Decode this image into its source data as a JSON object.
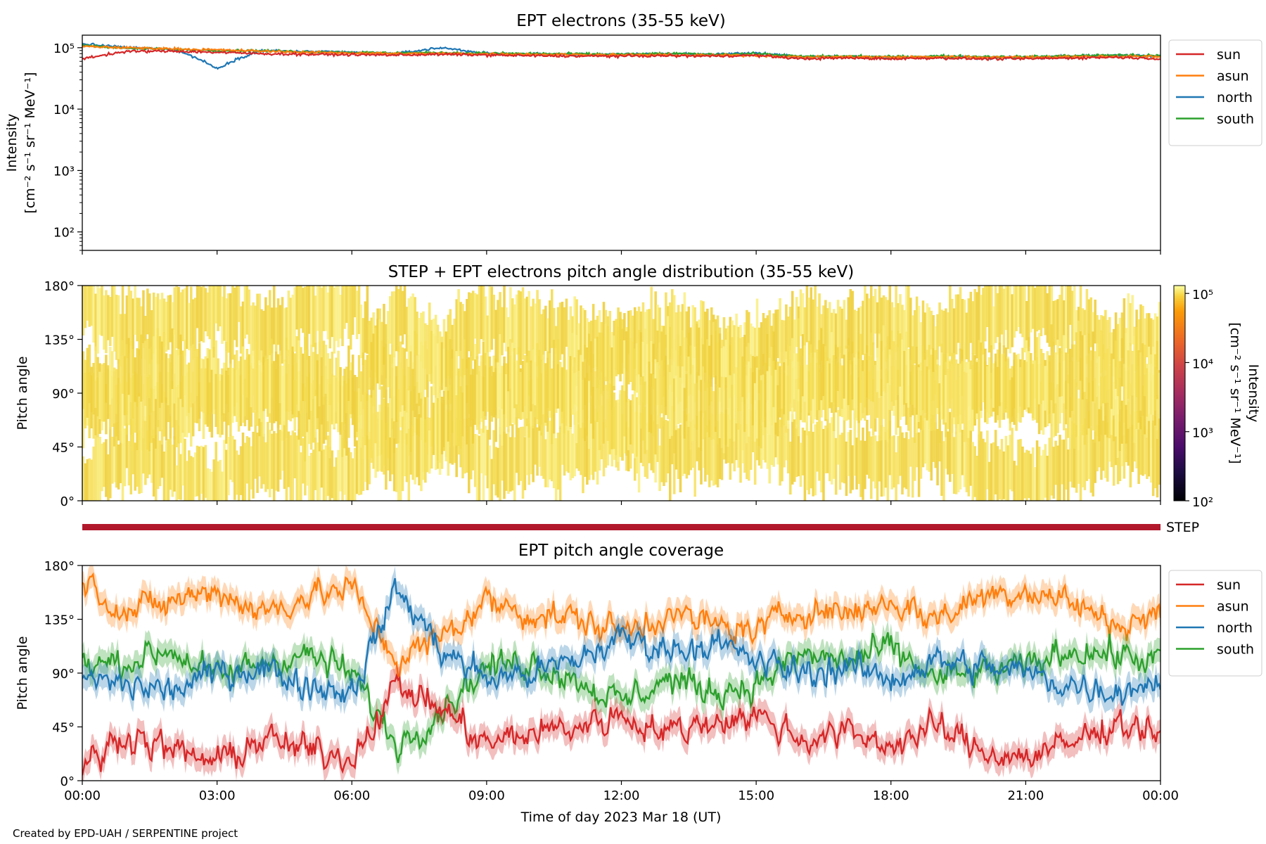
{
  "colors": {
    "sun": "#d62728",
    "asun": "#ff7f0e",
    "north": "#1f77b4",
    "south": "#2ca02c",
    "step_bar": "#b2182b"
  },
  "xaxis": {
    "tick_labels": [
      "00:00",
      "03:00",
      "06:00",
      "09:00",
      "12:00",
      "15:00",
      "18:00",
      "21:00",
      "00:00"
    ],
    "label": "Time of day 2023 Mar 18 (UT)",
    "range_hours": [
      0,
      24
    ]
  },
  "credit": "Created by EPD-UAH / SERPENTINE project",
  "step_label": "STEP",
  "chart_data": [
    {
      "type": "line",
      "title": "EPT electrons (35-55 keV)",
      "ylabel_line1": "Intensity",
      "ylabel_line2": "[cm⁻² s⁻¹ sr⁻¹ MeV⁻¹]",
      "yscale": "log",
      "ylim": [
        50,
        160000
      ],
      "yticks": [
        "10²",
        "10³",
        "10⁴",
        "10⁵"
      ],
      "ytick_values": [
        100,
        1000,
        10000,
        100000
      ],
      "legend": [
        "sun",
        "asun",
        "north",
        "south"
      ],
      "legend_position": "outside-right-top",
      "x_hours": [
        0,
        1,
        2,
        3,
        4,
        5,
        6,
        7,
        8,
        9,
        10,
        11,
        12,
        13,
        14,
        15,
        16,
        17,
        18,
        19,
        20,
        21,
        22,
        23,
        24
      ],
      "series": [
        {
          "name": "sun",
          "values": [
            66000,
            87000,
            88000,
            84000,
            80000,
            78000,
            77000,
            76000,
            78000,
            76000,
            74000,
            73000,
            73000,
            74000,
            73000,
            75000,
            66000,
            68000,
            66000,
            68000,
            66000,
            66000,
            68000,
            70000,
            66000
          ]
        },
        {
          "name": "asun",
          "values": [
            105000,
            100000,
            96000,
            92000,
            88000,
            84000,
            82000,
            80000,
            80000,
            79000,
            78000,
            77000,
            76000,
            76000,
            75000,
            75000,
            70000,
            71000,
            70000,
            71000,
            70000,
            70000,
            71000,
            72000,
            71000
          ]
        },
        {
          "name": "north",
          "values": [
            115000,
            100000,
            95000,
            45000,
            90000,
            86000,
            84000,
            80000,
            100000,
            80000,
            79000,
            78000,
            77000,
            80000,
            78000,
            82000,
            70000,
            72000,
            69000,
            71000,
            68000,
            69000,
            72000,
            75000,
            72000
          ]
        },
        {
          "name": "south",
          "values": [
            110000,
            98000,
            94000,
            90000,
            89000,
            86000,
            84000,
            82000,
            83000,
            81000,
            80000,
            79000,
            78000,
            80000,
            78000,
            80000,
            72000,
            73000,
            71000,
            73000,
            72000,
            71000,
            74000,
            76000,
            74000
          ]
        }
      ]
    },
    {
      "type": "heatmap",
      "title": "STEP + EPT electrons pitch angle distribution (35-55 keV)",
      "ylabel": "Pitch angle",
      "yticks": [
        "0°",
        "45°",
        "90°",
        "135°",
        "180°"
      ],
      "ylim": [
        0,
        180
      ],
      "colorbar_label": "Intensity\n[cm⁻² s⁻¹ sr⁻¹ MeV⁻¹]",
      "colorbar_ticks": [
        "10²",
        "10³",
        "10⁴",
        "10⁵"
      ],
      "colorbar_range": [
        100,
        130000
      ],
      "colorbar_scale": "log",
      "typical_intensity": 80000
    },
    {
      "type": "line",
      "title": "EPT pitch angle coverage",
      "ylabel": "Pitch angle",
      "yticks": [
        "0°",
        "45°",
        "90°",
        "135°",
        "180°"
      ],
      "ylim": [
        0,
        180
      ],
      "legend": [
        "sun",
        "asun",
        "north",
        "south"
      ],
      "legend_position": "outside-right-top",
      "x_hours": [
        0,
        1,
        2,
        3,
        4,
        5,
        6,
        7,
        8,
        9,
        10,
        11,
        12,
        13,
        14,
        15,
        16,
        17,
        18,
        19,
        20,
        21,
        22,
        23,
        24
      ],
      "series": [
        {
          "name": "sun",
          "values": [
            10,
            40,
            25,
            15,
            35,
            25,
            20,
            80,
            60,
            30,
            40,
            45,
            55,
            40,
            50,
            55,
            35,
            40,
            30,
            45,
            25,
            20,
            30,
            50,
            40
          ]
        },
        {
          "name": "asun",
          "values": [
            170,
            140,
            150,
            160,
            140,
            155,
            160,
            100,
            120,
            150,
            140,
            135,
            125,
            140,
            130,
            125,
            145,
            140,
            150,
            135,
            155,
            160,
            150,
            130,
            140
          ]
        },
        {
          "name": "north",
          "values": [
            85,
            80,
            75,
            90,
            95,
            80,
            75,
            160,
            110,
            85,
            90,
            100,
            120,
            110,
            115,
            100,
            90,
            95,
            85,
            100,
            95,
            90,
            80,
            75,
            85
          ]
        },
        {
          "name": "south",
          "values": [
            95,
            100,
            110,
            85,
            100,
            105,
            90,
            30,
            60,
            95,
            100,
            85,
            65,
            85,
            75,
            80,
            105,
            100,
            110,
            85,
            90,
            95,
            110,
            105,
            100
          ]
        }
      ]
    }
  ]
}
